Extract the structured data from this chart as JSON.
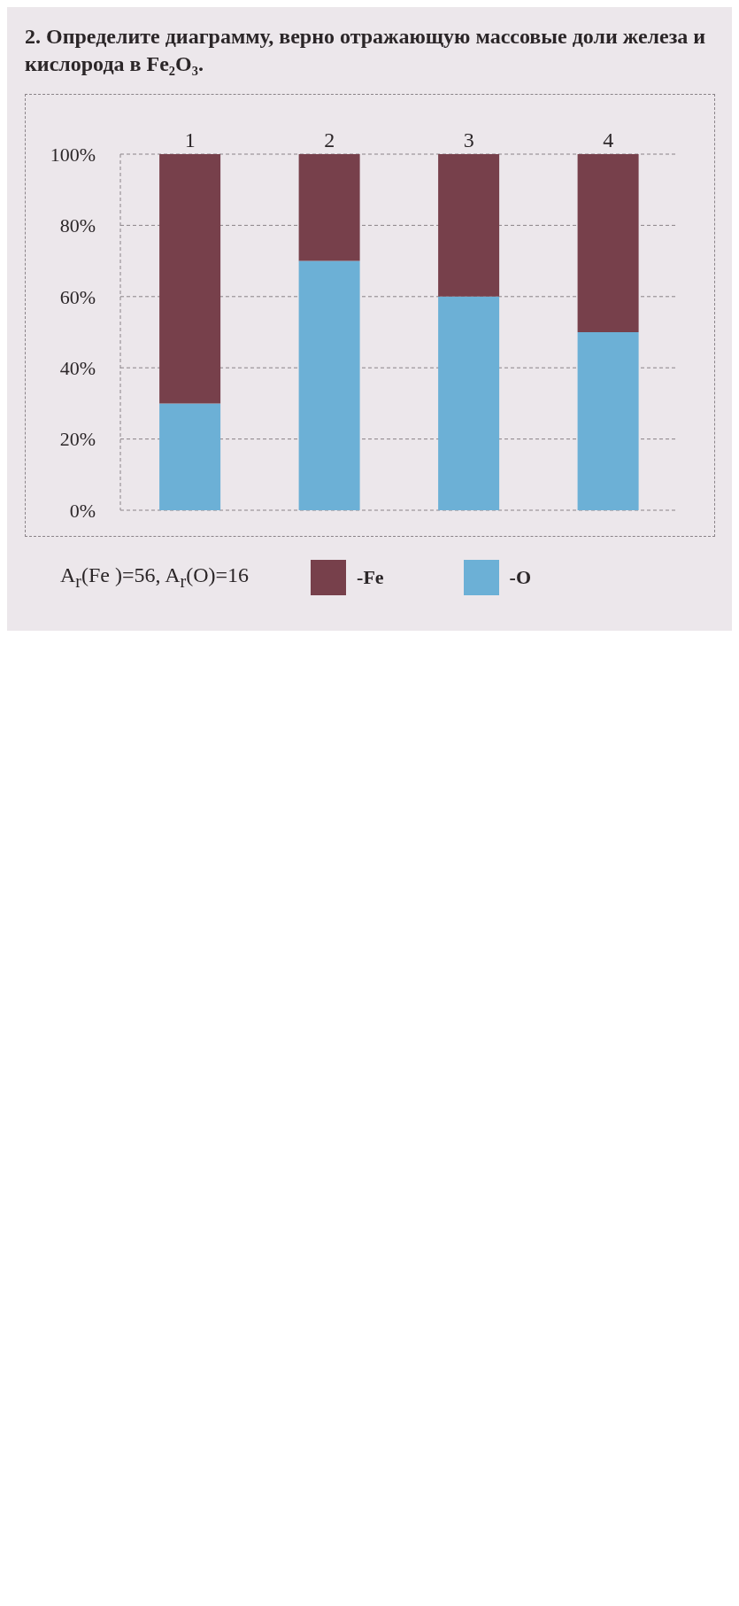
{
  "chart_data": {
    "type": "bar",
    "title": "2. Определите диаграмму, верно отражающую массовые доли железа и кислорода в Fe₂O₃.",
    "categories": [
      "1",
      "2",
      "3",
      "4"
    ],
    "series": [
      {
        "name": "-O",
        "color": "#6cb0d6",
        "values": [
          30,
          70,
          60,
          50
        ]
      },
      {
        "name": "-Fe",
        "color": "#77404b",
        "values": [
          70,
          30,
          40,
          50
        ]
      }
    ],
    "stacked": true,
    "ylim": [
      0,
      100
    ],
    "yticks": [
      {
        "value": 0,
        "label": "0%"
      },
      {
        "value": 20,
        "label": "20%"
      },
      {
        "value": 40,
        "label": "40%"
      },
      {
        "value": 60,
        "label": "60%"
      },
      {
        "value": 80,
        "label": "80%"
      },
      {
        "value": 100,
        "label": "100%"
      }
    ],
    "grid": "y",
    "legend": "bottom",
    "annotations": [
      "A$_{r}$(Fe )=56, A$_{r}$(O)=16"
    ]
  }
}
